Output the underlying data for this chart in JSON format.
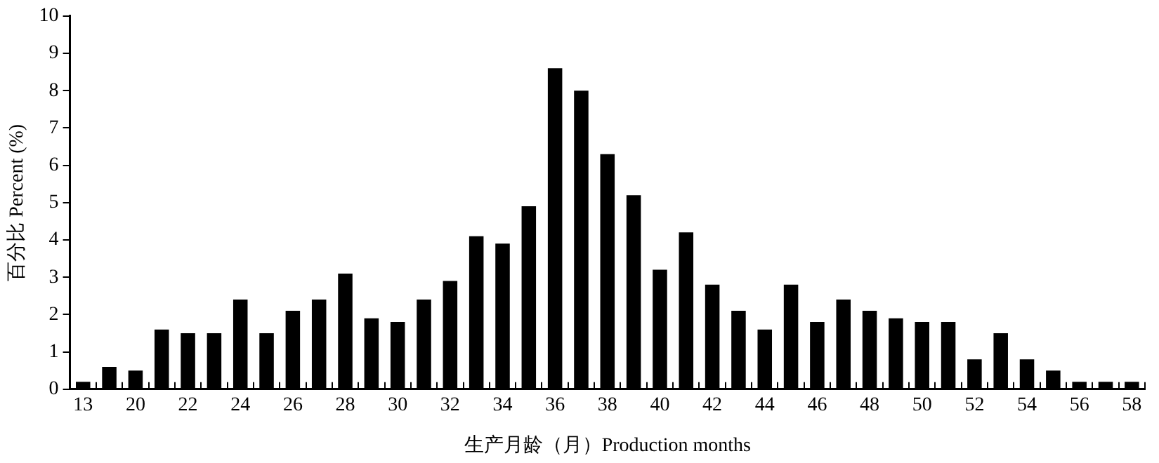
{
  "chart_data": {
    "type": "bar",
    "xlabel": "生产月龄（月）Production months",
    "ylabel": "百分比 Percent (%)",
    "categories": [
      "13",
      null,
      "20",
      null,
      "22",
      null,
      "24",
      null,
      "26",
      null,
      "28",
      null,
      "30",
      null,
      "32",
      null,
      "34",
      null,
      "36",
      null,
      "38",
      null,
      "40",
      null,
      "42",
      null,
      "44",
      null,
      "46",
      null,
      "48",
      null,
      "50",
      null,
      "52",
      null,
      "54",
      null,
      "56",
      null,
      "58"
    ],
    "values": [
      0.2,
      0.6,
      0.5,
      1.6,
      1.5,
      1.5,
      2.4,
      1.5,
      2.1,
      2.4,
      3.1,
      1.9,
      1.8,
      2.4,
      2.9,
      4.1,
      3.9,
      4.9,
      8.6,
      8.0,
      6.3,
      5.2,
      3.2,
      4.2,
      2.8,
      2.1,
      1.6,
      2.8,
      1.8,
      2.4,
      2.1,
      1.9,
      1.8,
      1.8,
      0.8,
      1.5,
      0.8,
      0.5,
      0.2,
      0.2,
      0.2
    ],
    "color": "#000000",
    "ylim": [
      0,
      10
    ],
    "yticks": [
      0,
      1,
      2,
      3,
      4,
      5,
      6,
      7,
      8,
      9,
      10
    ],
    "grid": false,
    "legend": false
  }
}
